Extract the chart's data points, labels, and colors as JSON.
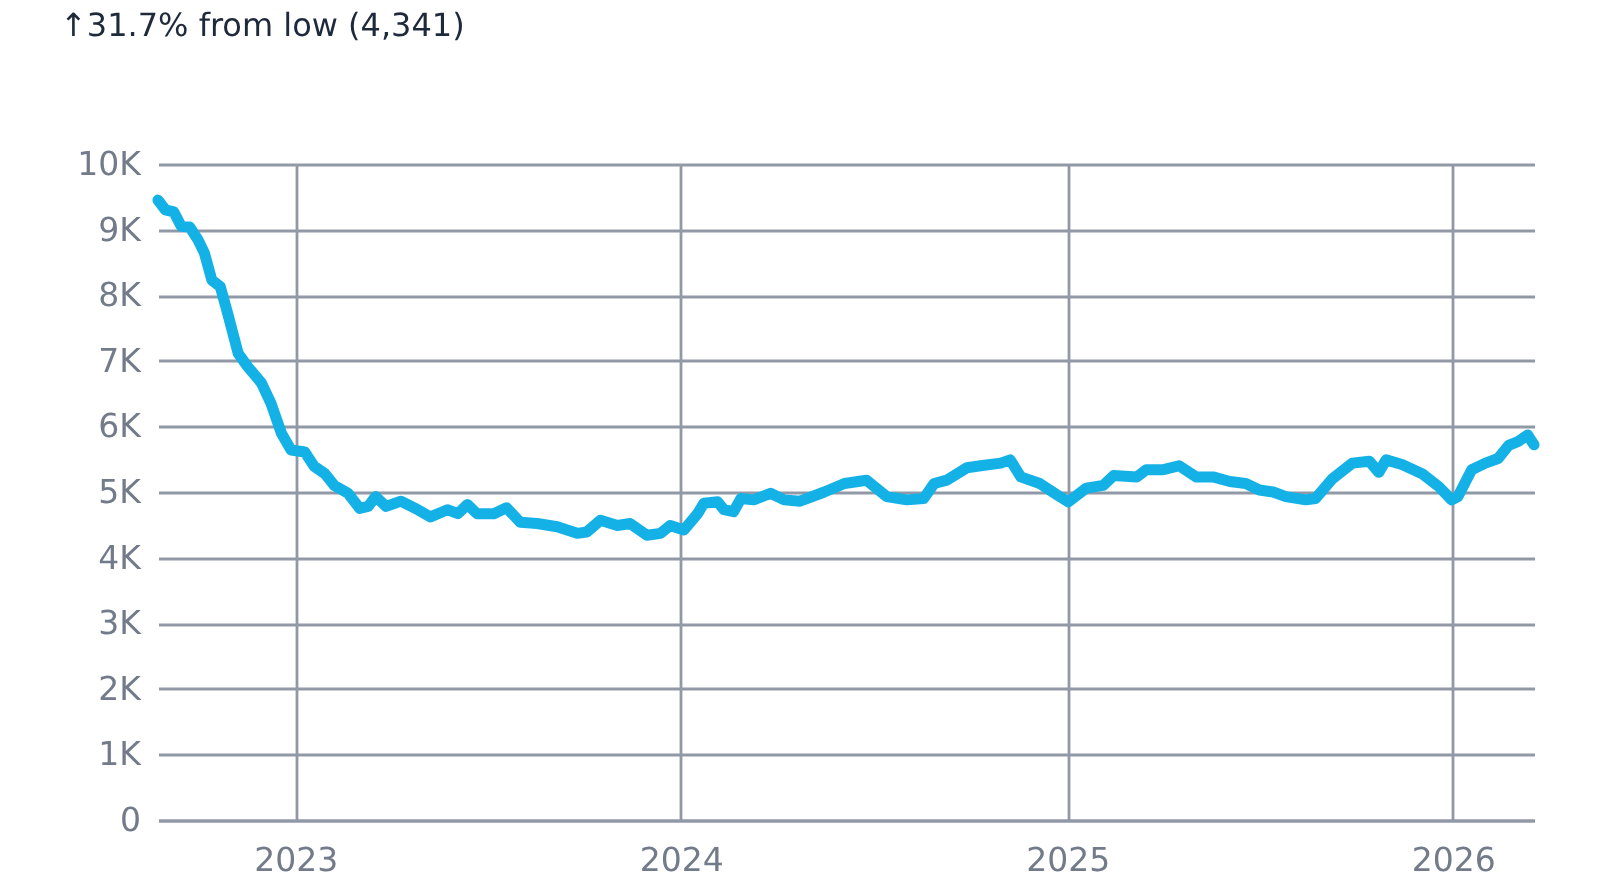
{
  "chart_data": {
    "type": "line",
    "title": "↑31.7% from low (4,341)",
    "x": [
      "2022-08-24",
      "2022-08-31",
      "2022-09-08",
      "2022-09-15",
      "2022-09-23",
      "2022-10-01",
      "2022-10-07",
      "2022-10-14",
      "2022-10-22",
      "2022-10-29",
      "2022-11-08",
      "2022-11-17",
      "2022-11-30",
      "2022-12-09",
      "2022-12-19",
      "2022-12-28",
      "2023-01-10",
      "2023-01-19",
      "2023-01-29",
      "2023-02-07",
      "2023-02-20",
      "2023-03-03",
      "2023-03-11",
      "2023-03-18",
      "2023-03-28",
      "2023-04-11",
      "2023-04-27",
      "2023-05-09",
      "2023-05-25",
      "2023-06-04",
      "2023-06-13",
      "2023-06-22",
      "2023-07-08",
      "2023-07-20",
      "2023-08-02",
      "2023-08-18",
      "2023-09-06",
      "2023-09-25",
      "2023-10-04",
      "2023-10-17",
      "2023-11-02",
      "2023-11-14",
      "2023-11-30",
      "2023-12-13",
      "2023-12-22",
      "2024-01-04",
      "2024-01-17",
      "2024-01-23",
      "2024-02-05",
      "2024-02-11",
      "2024-02-20",
      "2024-02-27",
      "2024-03-10",
      "2024-03-26",
      "2024-04-08",
      "2024-04-23",
      "2024-05-16",
      "2024-06-04",
      "2024-06-25",
      "2024-07-14",
      "2024-08-02",
      "2024-08-18",
      "2024-08-28",
      "2024-09-09",
      "2024-09-28",
      "2024-10-11",
      "2024-10-30",
      "2024-11-08",
      "2024-11-18",
      "2024-12-06",
      "2024-12-22",
      "2025-01-02",
      "2025-01-19",
      "2025-02-04",
      "2025-02-14",
      "2025-03-08",
      "2025-03-17",
      "2025-04-02",
      "2025-04-17",
      "2025-05-03",
      "2025-05-19",
      "2025-06-04",
      "2025-06-19",
      "2025-07-02",
      "2025-07-15",
      "2025-07-27",
      "2025-08-15",
      "2025-08-24",
      "2025-09-09",
      "2025-09-28",
      "2025-10-14",
      "2025-10-23",
      "2025-10-30",
      "2025-11-14",
      "2025-12-03",
      "2025-12-19",
      "2025-12-31",
      "2026-01-06",
      "2026-01-19",
      "2026-02-01",
      "2026-02-13",
      "2026-02-23",
      "2026-03-04",
      "2026-03-13",
      "2026-03-19"
    ],
    "series": [
      {
        "color": "#14b1e7",
        "values": [
          9450,
          9300,
          9270,
          9050,
          9040,
          8840,
          8640,
          8230,
          8130,
          7720,
          7110,
          6910,
          6660,
          6350,
          5890,
          5640,
          5610,
          5390,
          5280,
          5100,
          4980,
          4750,
          4780,
          4930,
          4780,
          4860,
          4730,
          4620,
          4730,
          4670,
          4810,
          4670,
          4670,
          4760,
          4540,
          4520,
          4470,
          4370,
          4390,
          4570,
          4490,
          4520,
          4341,
          4370,
          4490,
          4420,
          4670,
          4830,
          4850,
          4730,
          4700,
          4900,
          4880,
          4980,
          4880,
          4860,
          5000,
          5130,
          5180,
          4930,
          4880,
          4900,
          5130,
          5180,
          5370,
          5400,
          5440,
          5490,
          5230,
          5130,
          4960,
          4850,
          5060,
          5100,
          5250,
          5230,
          5340,
          5340,
          5400,
          5230,
          5230,
          5160,
          5130,
          5030,
          5000,
          4930,
          4880,
          4900,
          5200,
          5440,
          5470,
          5300,
          5490,
          5420,
          5280,
          5080,
          4880,
          4930,
          5340,
          5440,
          5510,
          5710,
          5770,
          5870,
          5720
        ]
      }
    ],
    "xlim": [
      "2022-08-24",
      "2026-03-19"
    ],
    "xticks": [
      "2023",
      "2024",
      "2025",
      "2026"
    ],
    "ylim": [
      0,
      10000
    ],
    "yticks": [
      0,
      {
        "value": 1000,
        "label": "1K"
      },
      {
        "value": 2000,
        "label": "2K"
      },
      {
        "value": 3000,
        "label": "3K"
      },
      {
        "value": 4000,
        "label": "4K"
      },
      {
        "value": 5000,
        "label": "5K"
      },
      {
        "value": 6000,
        "label": "6K"
      },
      {
        "value": 7000,
        "label": "7K"
      },
      {
        "value": 8000,
        "label": "8K"
      },
      {
        "value": 9000,
        "label": "9K"
      },
      {
        "value": 10000,
        "label": "10K"
      }
    ],
    "grid": true
  }
}
